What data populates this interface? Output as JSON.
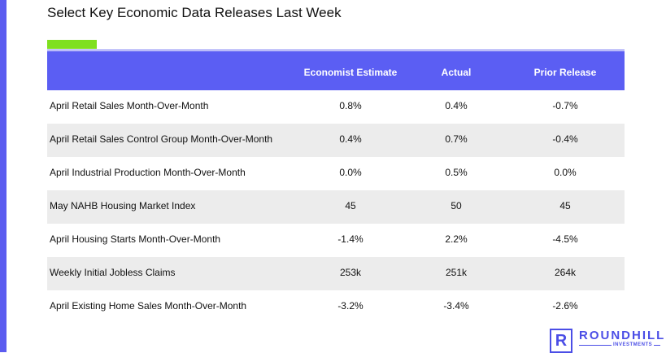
{
  "header": {
    "title": "Select Key Economic Data Releases Last Week"
  },
  "table": {
    "columns": [
      "Economist Estimate",
      "Actual",
      "Prior Release"
    ],
    "rows": [
      [
        "April Retail Sales Month-Over-Month",
        "0.8%",
        "0.4%",
        "-0.7%"
      ],
      [
        "April Retail Sales Control Group Month-Over-Month",
        "0.4%",
        "0.7%",
        "-0.4%"
      ],
      [
        "April Industrial Production Month-Over-Month",
        "0.0%",
        "0.5%",
        "0.0%"
      ],
      [
        "May NAHB Housing Market Index",
        "45",
        "50",
        "45"
      ],
      [
        "April Housing Starts Month-Over-Month",
        "-1.4%",
        "2.2%",
        "-4.5%"
      ],
      [
        "Weekly Initial Jobless Claims",
        "253k",
        "251k",
        "264k"
      ],
      [
        "April Existing Home Sales Month-Over-Month",
        "-3.2%",
        "-3.4%",
        "-2.6%"
      ]
    ]
  },
  "logo": {
    "mark": "R",
    "name": "ROUNDHILL",
    "tagline": "INVESTMENTS"
  }
}
